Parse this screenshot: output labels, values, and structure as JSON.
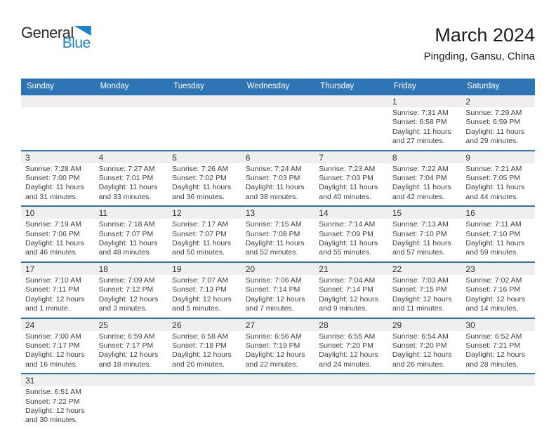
{
  "logo": {
    "part1": "General",
    "part2": "Blue"
  },
  "header": {
    "title": "March 2024",
    "subtitle": "Pingding, Gansu, China"
  },
  "colors": {
    "header_bar": "#2e75b6",
    "week_divider": "#2e75b6",
    "day_strip": "#efefef",
    "logo_blue": "#1787cb"
  },
  "weekdays": [
    "Sunday",
    "Monday",
    "Tuesday",
    "Wednesday",
    "Thursday",
    "Friday",
    "Saturday"
  ],
  "calendar": {
    "weeks": [
      [
        null,
        null,
        null,
        null,
        null,
        {
          "day": "1",
          "sunrise": "Sunrise: 7:31 AM",
          "sunset": "Sunset: 6:58 PM",
          "daylight": "Daylight: 11 hours and 27 minutes."
        },
        {
          "day": "2",
          "sunrise": "Sunrise: 7:29 AM",
          "sunset": "Sunset: 6:59 PM",
          "daylight": "Daylight: 11 hours and 29 minutes."
        }
      ],
      [
        {
          "day": "3",
          "sunrise": "Sunrise: 7:28 AM",
          "sunset": "Sunset: 7:00 PM",
          "daylight": "Daylight: 11 hours and 31 minutes."
        },
        {
          "day": "4",
          "sunrise": "Sunrise: 7:27 AM",
          "sunset": "Sunset: 7:01 PM",
          "daylight": "Daylight: 11 hours and 33 minutes."
        },
        {
          "day": "5",
          "sunrise": "Sunrise: 7:26 AM",
          "sunset": "Sunset: 7:02 PM",
          "daylight": "Daylight: 11 hours and 36 minutes."
        },
        {
          "day": "6",
          "sunrise": "Sunrise: 7:24 AM",
          "sunset": "Sunset: 7:03 PM",
          "daylight": "Daylight: 11 hours and 38 minutes."
        },
        {
          "day": "7",
          "sunrise": "Sunrise: 7:23 AM",
          "sunset": "Sunset: 7:03 PM",
          "daylight": "Daylight: 11 hours and 40 minutes."
        },
        {
          "day": "8",
          "sunrise": "Sunrise: 7:22 AM",
          "sunset": "Sunset: 7:04 PM",
          "daylight": "Daylight: 11 hours and 42 minutes."
        },
        {
          "day": "9",
          "sunrise": "Sunrise: 7:21 AM",
          "sunset": "Sunset: 7:05 PM",
          "daylight": "Daylight: 11 hours and 44 minutes."
        }
      ],
      [
        {
          "day": "10",
          "sunrise": "Sunrise: 7:19 AM",
          "sunset": "Sunset: 7:06 PM",
          "daylight": "Daylight: 11 hours and 46 minutes."
        },
        {
          "day": "11",
          "sunrise": "Sunrise: 7:18 AM",
          "sunset": "Sunset: 7:07 PM",
          "daylight": "Daylight: 11 hours and 48 minutes."
        },
        {
          "day": "12",
          "sunrise": "Sunrise: 7:17 AM",
          "sunset": "Sunset: 7:07 PM",
          "daylight": "Daylight: 11 hours and 50 minutes."
        },
        {
          "day": "13",
          "sunrise": "Sunrise: 7:15 AM",
          "sunset": "Sunset: 7:08 PM",
          "daylight": "Daylight: 11 hours and 52 minutes."
        },
        {
          "day": "14",
          "sunrise": "Sunrise: 7:14 AM",
          "sunset": "Sunset: 7:09 PM",
          "daylight": "Daylight: 11 hours and 55 minutes."
        },
        {
          "day": "15",
          "sunrise": "Sunrise: 7:13 AM",
          "sunset": "Sunset: 7:10 PM",
          "daylight": "Daylight: 11 hours and 57 minutes."
        },
        {
          "day": "16",
          "sunrise": "Sunrise: 7:11 AM",
          "sunset": "Sunset: 7:10 PM",
          "daylight": "Daylight: 11 hours and 59 minutes."
        }
      ],
      [
        {
          "day": "17",
          "sunrise": "Sunrise: 7:10 AM",
          "sunset": "Sunset: 7:11 PM",
          "daylight": "Daylight: 12 hours and 1 minute."
        },
        {
          "day": "18",
          "sunrise": "Sunrise: 7:09 AM",
          "sunset": "Sunset: 7:12 PM",
          "daylight": "Daylight: 12 hours and 3 minutes."
        },
        {
          "day": "19",
          "sunrise": "Sunrise: 7:07 AM",
          "sunset": "Sunset: 7:13 PM",
          "daylight": "Daylight: 12 hours and 5 minutes."
        },
        {
          "day": "20",
          "sunrise": "Sunrise: 7:06 AM",
          "sunset": "Sunset: 7:14 PM",
          "daylight": "Daylight: 12 hours and 7 minutes."
        },
        {
          "day": "21",
          "sunrise": "Sunrise: 7:04 AM",
          "sunset": "Sunset: 7:14 PM",
          "daylight": "Daylight: 12 hours and 9 minutes."
        },
        {
          "day": "22",
          "sunrise": "Sunrise: 7:03 AM",
          "sunset": "Sunset: 7:15 PM",
          "daylight": "Daylight: 12 hours and 11 minutes."
        },
        {
          "day": "23",
          "sunrise": "Sunrise: 7:02 AM",
          "sunset": "Sunset: 7:16 PM",
          "daylight": "Daylight: 12 hours and 14 minutes."
        }
      ],
      [
        {
          "day": "24",
          "sunrise": "Sunrise: 7:00 AM",
          "sunset": "Sunset: 7:17 PM",
          "daylight": "Daylight: 12 hours and 16 minutes."
        },
        {
          "day": "25",
          "sunrise": "Sunrise: 6:59 AM",
          "sunset": "Sunset: 7:17 PM",
          "daylight": "Daylight: 12 hours and 18 minutes."
        },
        {
          "day": "26",
          "sunrise": "Sunrise: 6:58 AM",
          "sunset": "Sunset: 7:18 PM",
          "daylight": "Daylight: 12 hours and 20 minutes."
        },
        {
          "day": "27",
          "sunrise": "Sunrise: 6:56 AM",
          "sunset": "Sunset: 7:19 PM",
          "daylight": "Daylight: 12 hours and 22 minutes."
        },
        {
          "day": "28",
          "sunrise": "Sunrise: 6:55 AM",
          "sunset": "Sunset: 7:20 PM",
          "daylight": "Daylight: 12 hours and 24 minutes."
        },
        {
          "day": "29",
          "sunrise": "Sunrise: 6:54 AM",
          "sunset": "Sunset: 7:20 PM",
          "daylight": "Daylight: 12 hours and 26 minutes."
        },
        {
          "day": "30",
          "sunrise": "Sunrise: 6:52 AM",
          "sunset": "Sunset: 7:21 PM",
          "daylight": "Daylight: 12 hours and 28 minutes."
        }
      ],
      [
        {
          "day": "31",
          "sunrise": "Sunrise: 6:51 AM",
          "sunset": "Sunset: 7:22 PM",
          "daylight": "Daylight: 12 hours and 30 minutes."
        },
        null,
        null,
        null,
        null,
        null,
        null
      ]
    ]
  }
}
